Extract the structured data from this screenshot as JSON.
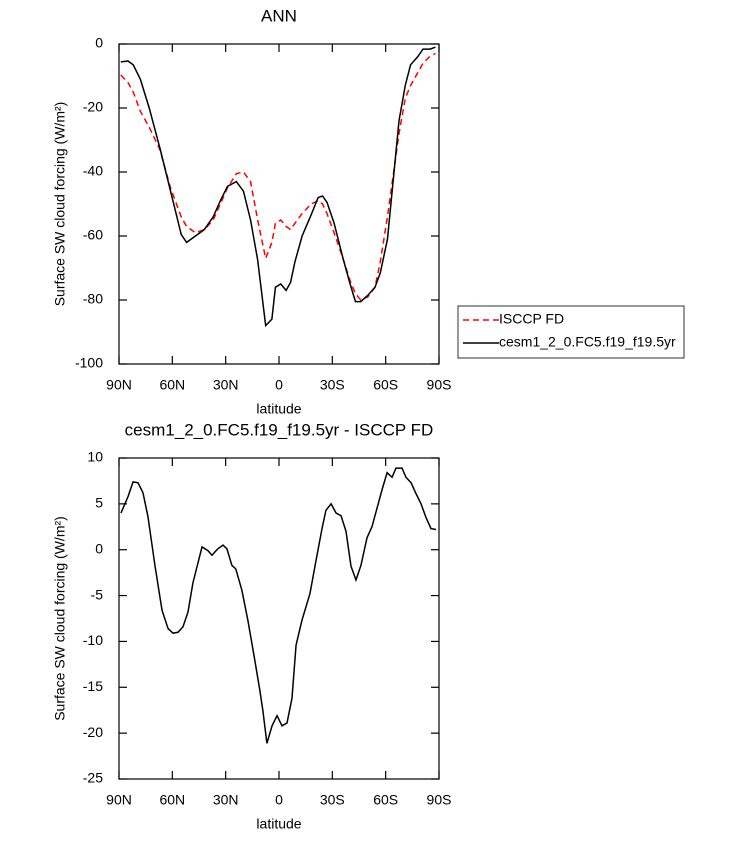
{
  "chart_data": [
    {
      "type": "line",
      "title": "ANN",
      "xlabel": "latitude",
      "ylabel": "Surface SW cloud forcing (W/m²)",
      "x": [
        89,
        85,
        82,
        78,
        73,
        67,
        61,
        57,
        55,
        52,
        47,
        42,
        37,
        33,
        29,
        24,
        20,
        16,
        12,
        7.5,
        4,
        2,
        -1,
        -4,
        -6.5,
        -9,
        -13,
        -18,
        -22,
        -24.5,
        -27,
        -31,
        -36,
        -40,
        -43,
        -46,
        -50,
        -54,
        -57,
        -61,
        -64,
        -67.5,
        -71,
        -74,
        -78,
        -81,
        -85,
        -88
      ],
      "series": [
        {
          "name": "ISCCP FD",
          "color": "#ff0000",
          "line_style": "dashed",
          "values": [
            -9.7,
            -12,
            -15,
            -21,
            -26,
            -33,
            -45,
            -51,
            -54,
            -57,
            -59,
            -58,
            -55,
            -50,
            -45,
            -40.5,
            -40,
            -43,
            -55,
            -67,
            -62,
            -56,
            -55,
            -57,
            -58,
            -56,
            -53,
            -50,
            -49,
            -50,
            -53,
            -59,
            -67,
            -74,
            -78,
            -80,
            -79,
            -76,
            -68,
            -54,
            -42,
            -28,
            -17,
            -13,
            -9,
            -6,
            -3.8,
            -3
          ]
        },
        {
          "name": "cesm1_2_0.FC5.f19_f19.5yr",
          "color": "#000000",
          "line_style": "solid",
          "values": [
            -5.6,
            -5.3,
            -6.5,
            -11,
            -20,
            -32.5,
            -46,
            -55,
            -59.5,
            -62,
            -60,
            -58,
            -54,
            -49,
            -44.5,
            -43,
            -46,
            -55,
            -67.5,
            -88,
            -86,
            -76,
            -75,
            -77,
            -74.5,
            -68,
            -60,
            -53.5,
            -48,
            -47.5,
            -49.5,
            -56,
            -67,
            -75,
            -80.5,
            -80.5,
            -78.5,
            -76,
            -71.5,
            -61,
            -44,
            -24,
            -13,
            -6.5,
            -4,
            -1.6,
            -1.6,
            -1
          ]
        }
      ],
      "xlim": [
        90,
        -90
      ],
      "xticks": [
        {
          "value": 90,
          "label": "90N"
        },
        {
          "value": 60,
          "label": "60N"
        },
        {
          "value": 30,
          "label": "30N"
        },
        0,
        {
          "value": -30,
          "label": "30S"
        },
        {
          "value": -60,
          "label": "60S"
        },
        {
          "value": -90,
          "label": "90S"
        }
      ],
      "ylim": [
        -100,
        0
      ],
      "yticks": [
        0,
        -20,
        -40,
        -60,
        -80,
        -100
      ],
      "legend": "right"
    },
    {
      "type": "line",
      "title": "cesm1_2_0.FC5.f19_f19.5yr - ISCCP FD",
      "xlabel": "latitude",
      "ylabel": "Surface SW cloud forcing (W/m²)",
      "x": [
        88.9,
        84.9,
        82.1,
        79.3,
        76.5,
        73.7,
        69.8,
        65.8,
        62.4,
        59.6,
        56.8,
        54,
        51.2,
        48.4,
        43.3,
        40,
        37.7,
        34.4,
        31.5,
        29.3,
        26.5,
        24.3,
        20.9,
        17.5,
        14.1,
        10.8,
        9.1,
        6.8,
        3.9,
        1.1,
        -1.7,
        -4.5,
        -7.3,
        -9.6,
        -12.9,
        -17.4,
        -20.8,
        -24.2,
        -26.4,
        -29.3,
        -32.1,
        -34.9,
        -37.7,
        -40.5,
        -43.3,
        -46.1,
        -49.5,
        -52.3,
        -55.1,
        -57.9,
        -60.8,
        -63.6,
        -65.8,
        -69.2,
        -71.4,
        -74.3,
        -77.1,
        -79.9,
        -82.7,
        -85.5,
        -88.3
      ],
      "series": [
        {
          "color": "#000000",
          "line_style": "solid",
          "values": [
            4,
            5.8,
            7.4,
            7.3,
            6.2,
            3.6,
            -1.7,
            -6.6,
            -8.6,
            -9.1,
            -9,
            -8.4,
            -6.8,
            -3.6,
            0.3,
            -0.1,
            -0.6,
            0.1,
            0.5,
            0.1,
            -1.7,
            -2.1,
            -4.4,
            -7.7,
            -11.5,
            -15.3,
            -17.5,
            -21.1,
            -19.2,
            -18.1,
            -19.2,
            -18.9,
            -16.2,
            -10.4,
            -7.7,
            -4.8,
            -1.2,
            2.3,
            4.3,
            5,
            4,
            3.7,
            2,
            -1.8,
            -3.3,
            -1.7,
            1.3,
            2.5,
            4.5,
            6.5,
            8.4,
            7.9,
            8.9,
            8.9,
            7.9,
            7.3,
            6.1,
            5,
            3.5,
            2.3,
            2.2
          ]
        }
      ],
      "xlim": [
        90,
        -90
      ],
      "xticks": [
        {
          "value": 90,
          "label": "90N"
        },
        {
          "value": 60,
          "label": "60N"
        },
        {
          "value": 30,
          "label": "30N"
        },
        0,
        {
          "value": -30,
          "label": "30S"
        },
        {
          "value": -60,
          "label": "60S"
        },
        {
          "value": -90,
          "label": "90S"
        }
      ],
      "ylim": [
        -25,
        10
      ],
      "yticks": [
        10,
        5,
        0,
        -5,
        -10,
        -15,
        -20,
        -25
      ]
    }
  ]
}
